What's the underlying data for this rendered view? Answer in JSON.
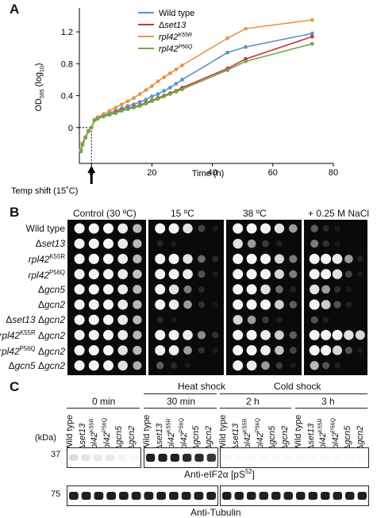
{
  "panels": {
    "a": "A",
    "b": "B",
    "c": "C"
  },
  "chart_data": {
    "type": "line",
    "xlabel": "Time (h)",
    "ylabel_main": "OD",
    "ylabel_sub": "595",
    "ylabel_log": "(log",
    "ylabel_log_sub": "10",
    "ylabel_close": ")",
    "xlim": [
      -4,
      80
    ],
    "ylim": [
      -0.45,
      1.5
    ],
    "xticks": [
      0,
      20,
      40,
      60,
      80
    ],
    "yticks": [
      0,
      0.4,
      0.8,
      1.2
    ],
    "ytick_labels": [
      "0",
      "0.4",
      "0.8",
      "1.2"
    ],
    "annotation": "Temp shift (15˚C)",
    "series": [
      {
        "name": "Wild type",
        "name_style": "plain",
        "color": "#5b93c7",
        "x": [
          -3.5,
          -3,
          -2,
          -1,
          0,
          1,
          2,
          4,
          6,
          8,
          10,
          12,
          14,
          16,
          18,
          20,
          22,
          24,
          26,
          28,
          30,
          45,
          51,
          73
        ],
        "y": [
          -0.28,
          -0.2,
          -0.12,
          -0.04,
          0,
          0.09,
          0.12,
          0.15,
          0.18,
          0.21,
          0.24,
          0.27,
          0.29,
          0.32,
          0.35,
          0.39,
          0.42,
          0.46,
          0.5,
          0.55,
          0.6,
          0.94,
          1.01,
          1.18
        ]
      },
      {
        "name_prefix": "Δ",
        "name": "set13",
        "color": "#cc3330",
        "x": [
          -3.5,
          -3,
          -2,
          -1,
          0,
          1,
          2,
          4,
          6,
          8,
          10,
          12,
          14,
          16,
          18,
          20,
          22,
          24,
          26,
          28,
          30,
          45,
          51,
          73
        ],
        "y": [
          -0.28,
          -0.2,
          -0.12,
          -0.04,
          0,
          0.09,
          0.11,
          0.14,
          0.16,
          0.19,
          0.22,
          0.24,
          0.26,
          0.28,
          0.31,
          0.34,
          0.37,
          0.4,
          0.43,
          0.46,
          0.5,
          0.74,
          0.86,
          1.14
        ]
      },
      {
        "name": "rpl42",
        "sup": "K55R",
        "color": "#e8954a",
        "x": [
          -3.5,
          -3,
          -2,
          -1,
          0,
          1,
          2,
          4,
          6,
          8,
          10,
          12,
          14,
          16,
          18,
          20,
          22,
          24,
          26,
          28,
          30,
          45,
          51,
          73
        ],
        "y": [
          -0.28,
          -0.2,
          -0.12,
          -0.04,
          0,
          0.1,
          0.13,
          0.17,
          0.21,
          0.25,
          0.29,
          0.33,
          0.37,
          0.42,
          0.47,
          0.52,
          0.58,
          0.63,
          0.68,
          0.73,
          0.78,
          1.12,
          1.24,
          1.35
        ]
      },
      {
        "name": "rpl42",
        "sup": "P56Q",
        "color": "#6aa84f",
        "x": [
          -3.5,
          -3,
          -2,
          -1,
          0,
          1,
          2,
          4,
          6,
          8,
          10,
          12,
          14,
          16,
          18,
          20,
          22,
          24,
          26,
          28,
          30,
          45,
          51,
          73
        ],
        "y": [
          -0.3,
          -0.22,
          -0.13,
          -0.05,
          0,
          0.09,
          0.11,
          0.14,
          0.16,
          0.18,
          0.21,
          0.23,
          0.25,
          0.27,
          0.3,
          0.33,
          0.36,
          0.39,
          0.42,
          0.45,
          0.48,
          0.72,
          0.83,
          1.05
        ]
      }
    ]
  },
  "spot_assay": {
    "headers": [
      "Control (30 ºC)",
      "15 ºC",
      "38 ºC",
      "+ 0.25 M NaCl"
    ],
    "strains": [
      {
        "parts": [
          {
            "t": "Wild type"
          }
        ]
      },
      {
        "parts": [
          {
            "t": "Δ"
          },
          {
            "t": "set13",
            "i": true
          }
        ]
      },
      {
        "parts": [
          {
            "t": "rpl42",
            "i": true
          },
          {
            "t": "K55R",
            "sup": true
          }
        ]
      },
      {
        "parts": [
          {
            "t": "rpl42",
            "i": true
          },
          {
            "t": "P56Q",
            "sup": true
          }
        ]
      },
      {
        "parts": [
          {
            "t": "Δ"
          },
          {
            "t": "gcn5",
            "i": true
          }
        ]
      },
      {
        "parts": [
          {
            "t": "Δ"
          },
          {
            "t": "gcn2",
            "i": true
          }
        ]
      },
      {
        "parts": [
          {
            "t": "Δ"
          },
          {
            "t": "set13",
            "i": true
          },
          {
            "t": " Δ"
          },
          {
            "t": "gcn2",
            "i": true
          }
        ]
      },
      {
        "parts": [
          {
            "t": "rpl42",
            "i": true
          },
          {
            "t": "K55R",
            "sup": true
          },
          {
            "t": " Δ"
          },
          {
            "t": "gcn2",
            "i": true
          }
        ]
      },
      {
        "parts": [
          {
            "t": "rpl42",
            "i": true
          },
          {
            "t": "P56Q",
            "sup": true
          },
          {
            "t": " Δ"
          },
          {
            "t": "gcn2",
            "i": true
          }
        ]
      },
      {
        "parts": [
          {
            "t": "Δ"
          },
          {
            "t": "gcn5",
            "i": true
          },
          {
            "t": " Δ"
          },
          {
            "t": "gcn2",
            "i": true
          }
        ]
      }
    ],
    "growth": [
      [
        [
          1,
          1,
          1,
          0.95,
          0.7
        ],
        [
          1,
          1,
          0.9,
          0.3,
          0.05
        ],
        [
          1,
          1,
          1,
          0.9,
          0.6
        ],
        [
          0.4,
          0.15,
          0.05,
          0,
          0
        ]
      ],
      [
        [
          1,
          1,
          1,
          0.95,
          0.7
        ],
        [
          0.15,
          0.05,
          0,
          0,
          0
        ],
        [
          0.9,
          0.6,
          0.25,
          0.1,
          0
        ],
        [
          0.5,
          0.2,
          0.05,
          0,
          0
        ]
      ],
      [
        [
          1,
          1,
          1,
          0.95,
          0.7
        ],
        [
          1,
          1,
          0.9,
          0.45,
          0.15
        ],
        [
          1,
          1,
          1,
          0.85,
          0.5
        ],
        [
          1,
          1,
          0.95,
          0.6,
          0.1
        ]
      ],
      [
        [
          1,
          1,
          1,
          0.95,
          0.75
        ],
        [
          1,
          1,
          0.95,
          0.35,
          0.05
        ],
        [
          1,
          1,
          1,
          0.85,
          0.5
        ],
        [
          1,
          1,
          0.9,
          0.3,
          0.05
        ]
      ],
      [
        [
          1,
          1,
          1,
          0.95,
          0.7
        ],
        [
          1,
          0.9,
          0.5,
          0.15,
          0
        ],
        [
          1,
          1,
          0.9,
          0.45,
          0.1
        ],
        [
          0.9,
          0.6,
          0.2,
          0.05,
          0
        ]
      ],
      [
        [
          1,
          1,
          1,
          0.95,
          0.7
        ],
        [
          1,
          0.95,
          0.6,
          0.2,
          0.03
        ],
        [
          1,
          1,
          1,
          0.8,
          0.4
        ],
        [
          1,
          0.8,
          0.35,
          0.1,
          0
        ]
      ],
      [
        [
          1,
          1,
          1,
          0.95,
          0.7
        ],
        [
          0.15,
          0.05,
          0,
          0,
          0
        ],
        [
          0.85,
          0.6,
          0.25,
          0.1,
          0
        ],
        [
          0.35,
          0.1,
          0,
          0,
          0
        ]
      ],
      [
        [
          1,
          1,
          1,
          0.95,
          0.7
        ],
        [
          1,
          1,
          0.95,
          0.55,
          0.2
        ],
        [
          1,
          1,
          0.95,
          0.8,
          0.4
        ],
        [
          1,
          1,
          1,
          0.9,
          0.85
        ]
      ],
      [
        [
          1,
          1,
          1,
          0.9,
          0.7
        ],
        [
          1,
          0.95,
          0.6,
          0.2,
          0.05
        ],
        [
          1,
          1,
          0.95,
          0.75,
          0.3
        ],
        [
          1,
          1,
          0.85,
          0.35,
          0.05
        ]
      ],
      [
        [
          1,
          1,
          1,
          0.9,
          0.65
        ],
        [
          0.4,
          0.15,
          0.05,
          0,
          0
        ],
        [
          1,
          0.95,
          0.6,
          0.25,
          0.05
        ],
        [
          0.7,
          0.35,
          0.1,
          0,
          0
        ]
      ]
    ]
  },
  "western": {
    "group_0min": "0 min",
    "heat_shock": "Heat shock",
    "heat_time": "30 min",
    "cold_shock": "Cold shock",
    "cold_times": [
      "2 h",
      "3 h"
    ],
    "kda_label": "(kDa)",
    "marker_37": "37",
    "marker_75": "75",
    "blot1_label": "Anti-eIF2α [pS",
    "blot1_sup": "52",
    "blot1_close": "]",
    "blot2_label": "Anti-Tubulin",
    "lanes": [
      {
        "parts": [
          {
            "t": "Wild type"
          }
        ]
      },
      {
        "parts": [
          {
            "t": "Δ"
          },
          {
            "t": "set13",
            "i": true
          }
        ]
      },
      {
        "parts": [
          {
            "t": "rpl42",
            "i": true
          },
          {
            "t": "K55R",
            "sup": true
          }
        ]
      },
      {
        "parts": [
          {
            "t": "rpl42",
            "i": true
          },
          {
            "t": "P56Q",
            "sup": true
          }
        ]
      },
      {
        "parts": [
          {
            "t": "Δ"
          },
          {
            "t": "gcn5",
            "i": true
          }
        ]
      },
      {
        "parts": [
          {
            "t": "Δ"
          },
          {
            "t": "gcn2",
            "i": true
          }
        ]
      }
    ],
    "phospho_intensity": [
      [
        0.15,
        0.12,
        0.1,
        0.1,
        0.05,
        0.03
      ],
      [
        0.95,
        0.95,
        0.95,
        0.9,
        0.9,
        0.85
      ],
      [
        0.03,
        0.02,
        0.02,
        0.02,
        0.02,
        0.02
      ],
      [
        0.02,
        0.02,
        0.02,
        0.02,
        0.02,
        0.02
      ]
    ]
  }
}
